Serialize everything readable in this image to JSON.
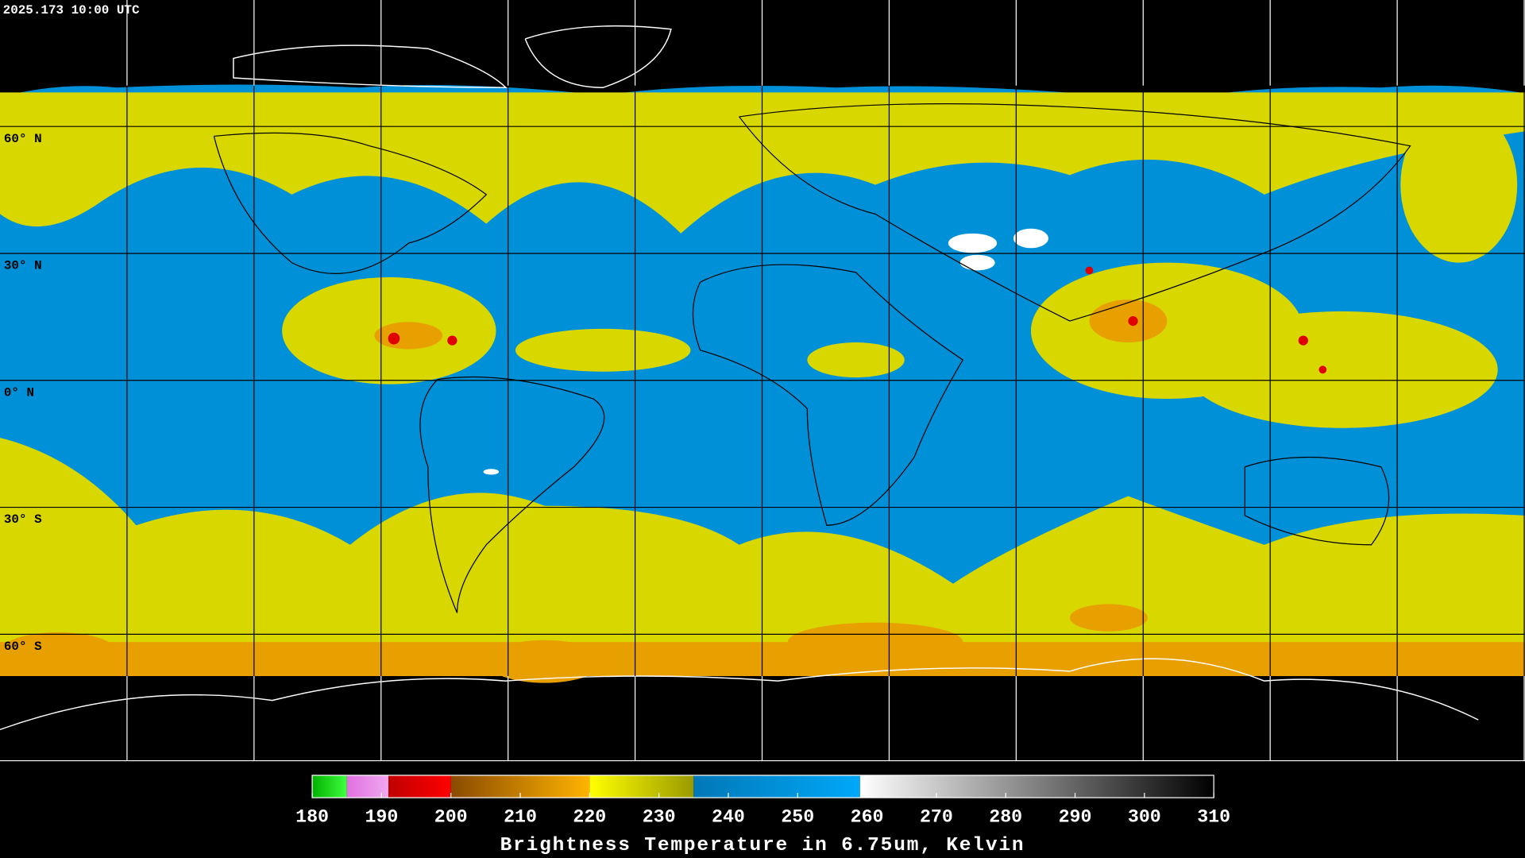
{
  "header": {
    "timestamp": "2025.173 10:00 UTC"
  },
  "map": {
    "lat_labels": [
      "60° N",
      "30° N",
      "0° N",
      "30° S",
      "60° S"
    ]
  },
  "colorbar": {
    "title": "Brightness Temperature in 6.75um, Kelvin",
    "range": [
      180,
      310
    ],
    "ticks": [
      180,
      190,
      200,
      210,
      220,
      230,
      240,
      250,
      260,
      270,
      280,
      290,
      300,
      310
    ],
    "segments": [
      {
        "from": 180,
        "to": 185,
        "colors": [
          "#00b000",
          "#40ff40"
        ]
      },
      {
        "from": 185,
        "to": 191,
        "colors": [
          "#e070e0",
          "#f0a8f0"
        ]
      },
      {
        "from": 191,
        "to": 200,
        "colors": [
          "#c00000",
          "#ff0000"
        ]
      },
      {
        "from": 200,
        "to": 220,
        "colors": [
          "#8a4a00",
          "#ffb400"
        ]
      },
      {
        "from": 220,
        "to": 235,
        "colors": [
          "#ffff00",
          "#9a9a00"
        ]
      },
      {
        "from": 235,
        "to": 259,
        "colors": [
          "#0078b8",
          "#00a8f8"
        ]
      },
      {
        "from": 259,
        "to": 310,
        "colors": [
          "#ffffff",
          "#000000"
        ]
      }
    ]
  }
}
